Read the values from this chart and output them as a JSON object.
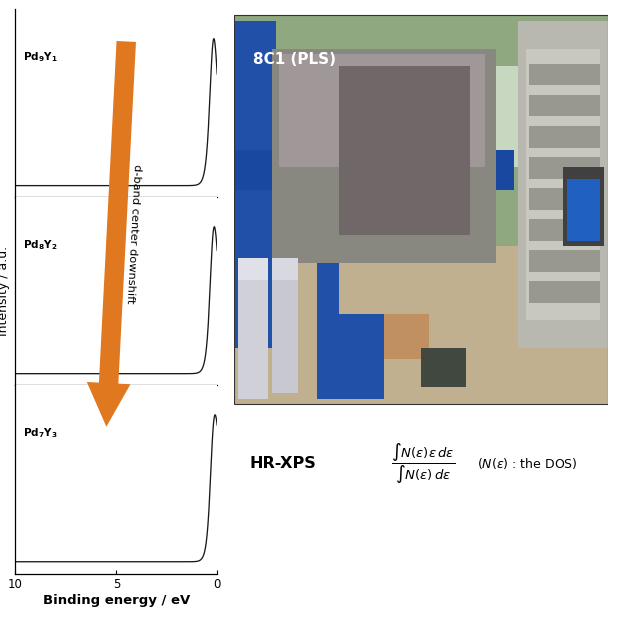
{
  "panel_labels": [
    "Pd_9Y_1",
    "Pd_8Y_2",
    "Pd_7Y_3"
  ],
  "xlabel": "Binding energy / eV",
  "ylabel": "Intensity / a.u.",
  "arrow_color": "#E07820",
  "arrow_label": "d-band center downshift",
  "bg_color": "#ffffff",
  "photo_label": "8C1 (PLS)",
  "hrxps_label": "HR-XPS",
  "curve_color": "#1a1a1a",
  "spine_color": "#000000"
}
